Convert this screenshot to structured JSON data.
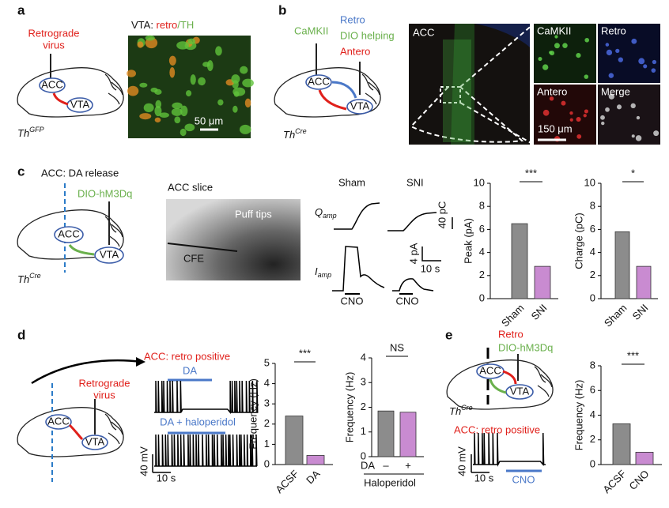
{
  "panels": {
    "a": {
      "letter": "a",
      "virus": [
        "Retrograde",
        "virus"
      ],
      "image_title": [
        "VTA: ",
        "retro",
        "/TH"
      ],
      "scale": "50 μm",
      "acc": "ACC",
      "vta": "VTA",
      "mouse": "Th",
      "mouse_sup": "GFP"
    },
    "b": {
      "letter": "b",
      "camkii": "CaMKII",
      "retro": "Retro",
      "helping": "DIO helping",
      "antero": "Antero",
      "acc": "ACC",
      "vta": "VTA",
      "mouse": "Th",
      "mouse_sup": "Cre",
      "image_acc": "ACC",
      "tiles": [
        "CaMKII",
        "Retro",
        "Antero",
        "Merge"
      ],
      "scale": "150 μm"
    },
    "c": {
      "letter": "c",
      "title": "ACC: DA release",
      "virus": "DIO-hM3Dq",
      "acc": "ACC",
      "vta": "VTA",
      "mouse": "Th",
      "mouse_sup": "Cre",
      "slice": "ACC slice",
      "puff": "Puff tips",
      "cfe": "CFE",
      "sham": "Sham",
      "sni": "SNI",
      "q": "Q",
      "q_sub": "amp",
      "i": "I",
      "i_sub": "amp",
      "pc": "40 pC",
      "pa": "4 pA",
      "s": "10 s",
      "cno": [
        "CNO",
        "CNO"
      ]
    },
    "d": {
      "letter": "d",
      "title": "ACC: retro positive",
      "da": "DA",
      "dahal": "DA + haloperidol",
      "virus": [
        "Retrograde",
        "virus"
      ],
      "acc": "ACC",
      "vta": "VTA",
      "mv": "40 mV",
      "s": "10 s"
    },
    "e": {
      "letter": "e",
      "retro": "Retro",
      "virus": "DIO-hM3Dq",
      "acc": "ACC",
      "vta": "VTA",
      "mouse": "Th",
      "mouse_sup": "Cre",
      "title": "ACC: retro positive",
      "mv": "40 mV",
      "s": "10 s",
      "cno": "CNO"
    }
  },
  "chart_data": [
    {
      "type": "bar",
      "ylabel": "Peak (pA)",
      "categories": [
        "Sham",
        "SNI"
      ],
      "values": [
        6.5,
        2.8
      ],
      "colors": [
        "#8c8c8c",
        "#c98bd1"
      ],
      "ylim": [
        0,
        10
      ],
      "yticks": [
        0,
        2,
        4,
        6,
        8,
        10
      ],
      "significance": "***"
    },
    {
      "type": "bar",
      "ylabel": "Charge (pC)",
      "categories": [
        "Sham",
        "SNI"
      ],
      "values": [
        5.8,
        2.8
      ],
      "colors": [
        "#8c8c8c",
        "#c98bd1"
      ],
      "ylim": [
        0,
        10
      ],
      "yticks": [
        0,
        2,
        4,
        6,
        8,
        10
      ],
      "significance": "*"
    },
    {
      "type": "bar",
      "ylabel": "Frequency (Hz)",
      "categories": [
        "ACSF",
        "DA"
      ],
      "values": [
        2.4,
        0.45
      ],
      "colors": [
        "#8c8c8c",
        "#c98bd1"
      ],
      "ylim": [
        0,
        5
      ],
      "yticks": [
        0,
        1,
        2,
        3,
        4,
        5
      ],
      "significance": "***"
    },
    {
      "type": "bar",
      "ylabel": "Frequency (Hz)",
      "categories": [
        "–",
        "+"
      ],
      "values": [
        1.85,
        1.8
      ],
      "colors": [
        "#8c8c8c",
        "#c98bd1"
      ],
      "ylim": [
        0,
        4
      ],
      "yticks": [
        0,
        1,
        2,
        3,
        4
      ],
      "significance": "NS",
      "row_label": "DA",
      "xlabel": "Haloperidol"
    },
    {
      "type": "bar",
      "ylabel": "Frequency (Hz)",
      "categories": [
        "ACSF",
        "CNO"
      ],
      "values": [
        3.3,
        1.0
      ],
      "colors": [
        "#8c8c8c",
        "#c98bd1"
      ],
      "ylim": [
        0,
        8
      ],
      "yticks": [
        0,
        2,
        4,
        6,
        8
      ],
      "significance": "***"
    }
  ]
}
